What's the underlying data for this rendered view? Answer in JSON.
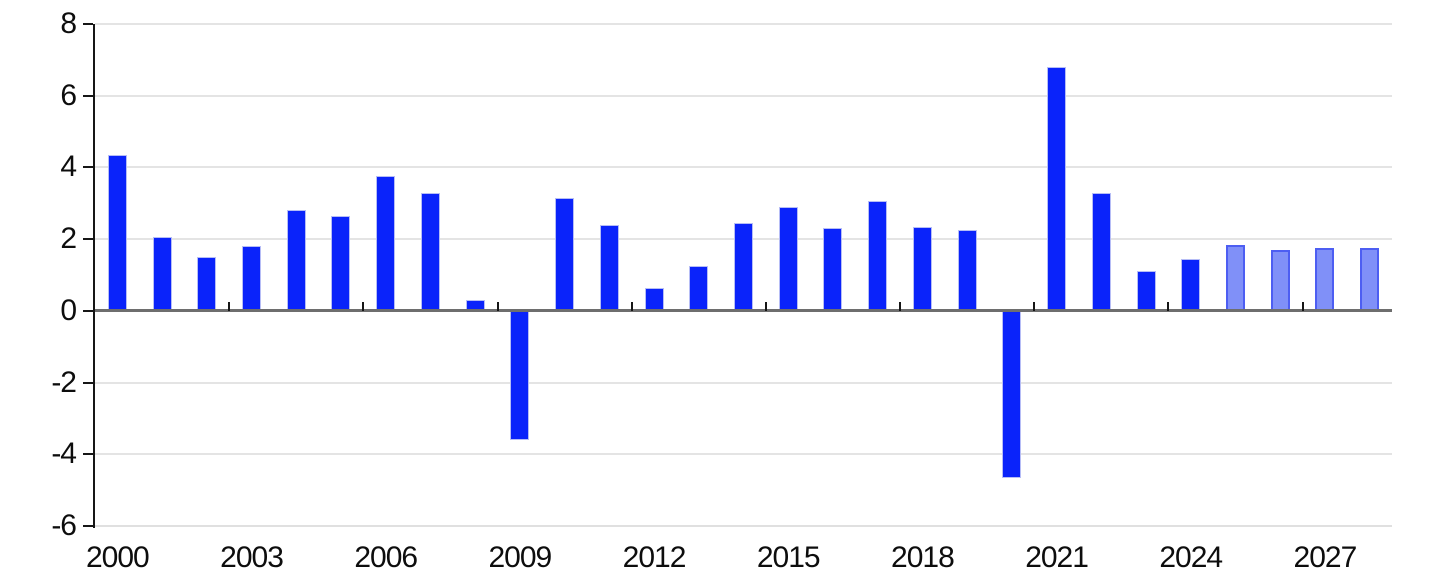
{
  "chart_data": {
    "type": "bar",
    "title": "",
    "xlabel": "",
    "ylabel": "",
    "ylim": [
      -6,
      8
    ],
    "yticks": [
      8,
      6,
      4,
      2,
      0,
      -2,
      -4,
      -6
    ],
    "grid": "horizontal",
    "legend": "none",
    "categories": [
      "2000",
      "2001",
      "2002",
      "2003",
      "2004",
      "2005",
      "2006",
      "2007",
      "2008",
      "2009",
      "2010",
      "2011",
      "2012",
      "2013",
      "2014",
      "2015",
      "2016",
      "2017",
      "2018",
      "2019",
      "2020",
      "2021",
      "2022",
      "2023",
      "2024",
      "2025",
      "2026",
      "2027",
      "2028"
    ],
    "values": [
      4.35,
      2.05,
      1.5,
      1.8,
      2.8,
      2.65,
      3.75,
      3.3,
      0.3,
      -3.6,
      3.15,
      2.4,
      0.65,
      1.25,
      2.45,
      2.9,
      2.3,
      3.05,
      2.35,
      2.25,
      -4.65,
      6.8,
      3.3,
      1.1,
      1.45,
      1.85,
      1.7,
      1.75,
      1.75
    ],
    "forecast_start": "2025",
    "x_axis_labels": [
      "2000",
      "2003",
      "2006",
      "2009",
      "2012",
      "2015",
      "2018",
      "2021",
      "2024",
      "2027"
    ],
    "x_label_interval": 3,
    "series": [
      {
        "name": "actual",
        "years": "2000-2024",
        "color": "#0a23fa"
      },
      {
        "name": "forecast",
        "years": "2025-2028",
        "color": "#8090f8",
        "border_color": "#4d5ef2"
      }
    ],
    "colors": {
      "bar_actual": "#0a23fa",
      "bar_actual_edge": "#b6bdf6",
      "bar_forecast_fill": "#8090f8",
      "bar_forecast_edge": "#4d5ef2",
      "gridline": "#e4e4e4",
      "zero_line": "#6e6e6e",
      "axis": "#161616",
      "label_text": "#0d0d0d"
    }
  }
}
